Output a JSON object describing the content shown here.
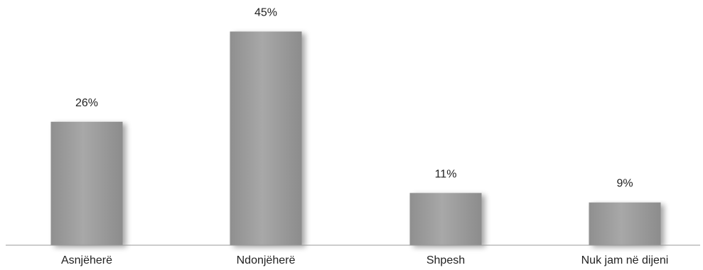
{
  "chart_data": {
    "type": "bar",
    "categories": [
      "Asnjëherë",
      "Ndonjëherë",
      "Shpesh",
      "Nuk jam në dijeni"
    ],
    "values": [
      26,
      45,
      11,
      9
    ],
    "value_labels": [
      "26%",
      "45%",
      "11%",
      "9%"
    ],
    "unit": "%",
    "ylim": [
      0,
      50
    ],
    "grid": false,
    "legend": "none",
    "colors": {
      "bar": "#9a9a9a",
      "bar_highlight": "#b3b3b3",
      "axis": "#999999",
      "text": "#222222"
    }
  }
}
